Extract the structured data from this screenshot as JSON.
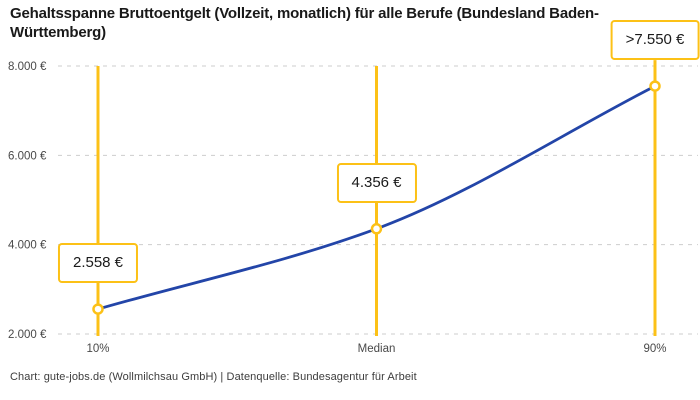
{
  "header": {
    "title": "Gehaltsspanne Bruttoentgelt (Vollzeit, monatlich) für alle Berufe (Bundesland Baden-Württemberg)"
  },
  "footer": {
    "attribution": "Chart: gute-jobs.de (Wollmilchsau GmbH) | Datenquelle: Bundesagentur für Arbeit"
  },
  "colors": {
    "accent_yellow": "#fcc117",
    "line_blue": "#2345a8",
    "grid_gray": "#cdcdcd",
    "title_text": "#191919",
    "tick_text": "#494949",
    "marker_fill": "#ffffff"
  },
  "chart_data": {
    "type": "line",
    "title": "Gehaltsspanne Bruttoentgelt (Vollzeit, monatlich) für alle Berufe (Bundesland Baden-Württemberg)",
    "xlabel": "",
    "ylabel": "",
    "categories": [
      "10%",
      "Median",
      "90%"
    ],
    "values": [
      2558,
      4356,
      7550
    ],
    "value_labels": [
      "2.558 €",
      "4.356 €",
      ">7.550 €"
    ],
    "series": [
      {
        "name": "Bruttoentgelt",
        "values": [
          2558,
          4356,
          7550
        ]
      }
    ],
    "ylim": [
      2000,
      8000
    ],
    "yticks": [
      2000,
      4000,
      6000,
      8000
    ],
    "ytick_labels": [
      "2.000 €",
      "4.000 €",
      "6.000 €",
      "8.000 €"
    ],
    "grid": "horizontal-dashed",
    "legend": "none",
    "marker": "open-circle",
    "curve": "monotone",
    "annotation_style": "value boxes above points on vertical percentile lines"
  }
}
